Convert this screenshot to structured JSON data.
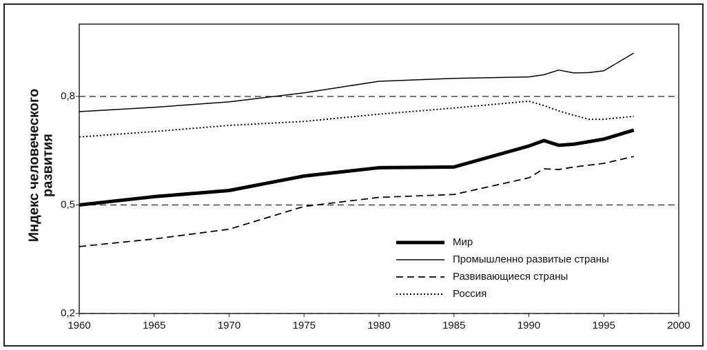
{
  "chart_data": {
    "type": "line",
    "ylabel": [
      "Индекс человеческого",
      "развития"
    ],
    "x": [
      1960,
      1965,
      1970,
      1975,
      1980,
      1985,
      1990,
      1991,
      1992,
      1993,
      1994,
      1995,
      1997
    ],
    "series": [
      {
        "name": "Мир",
        "color": "#000000",
        "style": "thick",
        "values": [
          0.5,
          0.523,
          0.54,
          0.58,
          0.603,
          0.605,
          0.663,
          0.678,
          0.665,
          0.668,
          0.675,
          0.682,
          0.707
        ]
      },
      {
        "name": "Промышленно развитые страны",
        "color": "#000000",
        "style": "thin",
        "values": [
          0.758,
          0.77,
          0.785,
          0.81,
          0.842,
          0.85,
          0.854,
          0.86,
          0.873,
          0.865,
          0.866,
          0.871,
          0.92
        ]
      },
      {
        "name": "Развивающиеся страны",
        "color": "#000000",
        "style": "dashed",
        "values": [
          0.385,
          0.406,
          0.433,
          0.496,
          0.521,
          0.529,
          0.575,
          0.6,
          0.598,
          0.605,
          0.61,
          0.615,
          0.634
        ]
      },
      {
        "name": "Россия",
        "color": "#000000",
        "style": "dotted",
        "values": [
          0.688,
          0.703,
          0.72,
          0.731,
          0.751,
          0.768,
          0.787,
          0.775,
          0.76,
          0.748,
          0.737,
          0.737,
          0.745
        ]
      }
    ],
    "xlim": [
      1960,
      2000
    ],
    "xticks": [
      1960,
      1965,
      1970,
      1975,
      1980,
      1985,
      1990,
      1995,
      2000
    ],
    "ylim": [
      0.2,
      1.0
    ],
    "yticks": [
      {
        "value": 0.2,
        "label": "0,2"
      },
      {
        "value": 0.5,
        "label": "0,5"
      },
      {
        "value": 0.8,
        "label": "0,8"
      }
    ],
    "grid": true,
    "legend": "lower right"
  }
}
